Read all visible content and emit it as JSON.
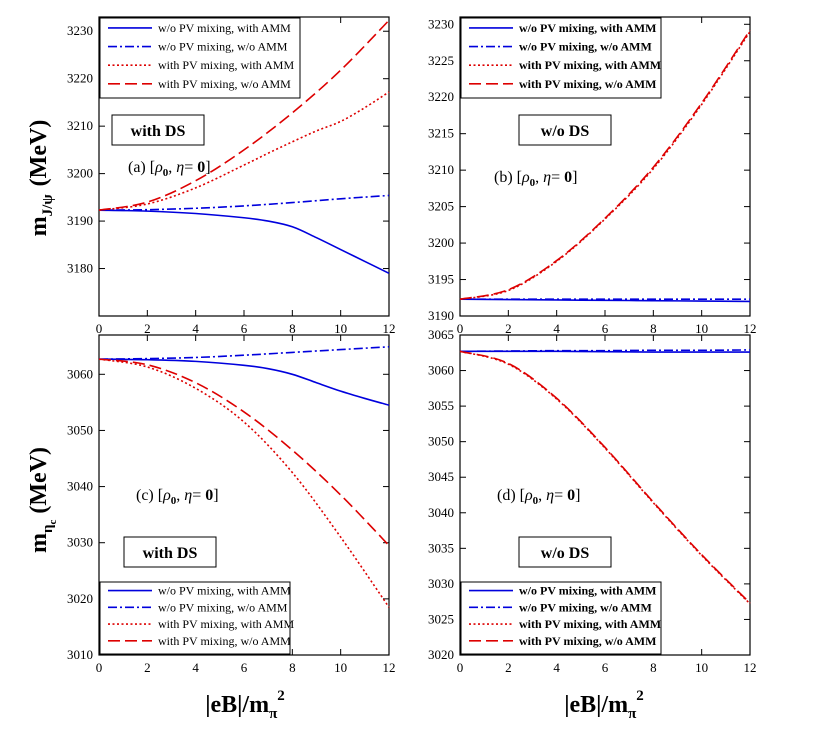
{
  "chart_data": [
    {
      "type": "line",
      "panel": "a",
      "annotation_text": "(a) [ρ0, η= 0]",
      "box_label": "with DS",
      "xlim": [
        0,
        12
      ],
      "ylim": [
        3170,
        3233
      ],
      "xticks": [
        0,
        2,
        4,
        6,
        8,
        10,
        12
      ],
      "yticks": [
        3180,
        3190,
        3200,
        3210,
        3220,
        3230
      ],
      "ylabel": "mJ/ψ  (MeV)",
      "legend_position": "top-left",
      "legend_bold": false,
      "series": [
        {
          "name": "w/o PV mixing, with AMM",
          "color": "#0000dd",
          "dash": "solid",
          "x": [
            0,
            2,
            4,
            6,
            7,
            8,
            9,
            10,
            11,
            12
          ],
          "y": [
            3192.3,
            3192.1,
            3191.6,
            3190.7,
            3190.0,
            3188.8,
            3186.5,
            3184.0,
            3181.5,
            3179.0
          ]
        },
        {
          "name": "w/o PV mixing, w/o AMM",
          "color": "#0000dd",
          "dash": "dashdot",
          "x": [
            0,
            2,
            4,
            6,
            8,
            10,
            12
          ],
          "y": [
            3192.3,
            3192.4,
            3192.7,
            3193.2,
            3193.9,
            3194.7,
            3195.4
          ]
        },
        {
          "name": "with PV mixing, with AMM",
          "color": "#dd0000",
          "dash": "dotted",
          "x": [
            0,
            2,
            4,
            6,
            7,
            8,
            9,
            10,
            11,
            12
          ],
          "y": [
            3192.3,
            3193.6,
            3197.0,
            3201.8,
            3204.3,
            3206.7,
            3209.0,
            3211.0,
            3213.9,
            3217.2
          ]
        },
        {
          "name": "with PV mixing, w/o AMM",
          "color": "#dd0000",
          "dash": "dashed",
          "x": [
            0,
            2,
            4,
            6,
            8,
            10,
            12
          ],
          "y": [
            3192.3,
            3194.0,
            3198.5,
            3205.0,
            3212.8,
            3221.8,
            3232.3
          ]
        }
      ]
    },
    {
      "type": "line",
      "panel": "b",
      "annotation_text": "(b) [ρ0, η= 0]",
      "box_label": "w/o DS",
      "xlim": [
        0,
        12
      ],
      "ylim": [
        3190,
        3231
      ],
      "xticks": [
        0,
        2,
        4,
        6,
        8,
        10,
        12
      ],
      "yticks": [
        3190,
        3195,
        3200,
        3205,
        3210,
        3215,
        3220,
        3225,
        3230
      ],
      "legend_position": "top-left",
      "legend_bold": true,
      "series": [
        {
          "name": "w/o PV mixing, with AMM",
          "color": "#0000dd",
          "dash": "solid",
          "x": [
            0,
            2,
            4,
            6,
            8,
            10,
            12
          ],
          "y": [
            3192.3,
            3192.25,
            3192.2,
            3192.15,
            3192.1,
            3192.05,
            3192.0
          ]
        },
        {
          "name": "w/o PV mixing, w/o AMM",
          "color": "#0000dd",
          "dash": "dashdot",
          "x": [
            0,
            2,
            4,
            6,
            8,
            10,
            12
          ],
          "y": [
            3192.3,
            3192.3,
            3192.3,
            3192.3,
            3192.3,
            3192.3,
            3192.3
          ]
        },
        {
          "name": "with PV mixing, with AMM",
          "color": "#dd0000",
          "dash": "dotted",
          "x": [
            0,
            2,
            4,
            6,
            8,
            10,
            12
          ],
          "y": [
            3192.3,
            3193.5,
            3197.5,
            3203.3,
            3210.2,
            3219.0,
            3229.0
          ]
        },
        {
          "name": "with PV mixing, w/o AMM",
          "color": "#dd0000",
          "dash": "dashed",
          "x": [
            0,
            2,
            4,
            6,
            8,
            10,
            12
          ],
          "y": [
            3192.3,
            3193.6,
            3197.6,
            3203.4,
            3210.4,
            3219.2,
            3229.2
          ]
        }
      ]
    },
    {
      "type": "line",
      "panel": "c",
      "annotation_text": "(c) [ρ0, η= 0]",
      "box_label": "with DS",
      "xlim": [
        0,
        12
      ],
      "ylim": [
        3010,
        3067
      ],
      "xticks": [
        0,
        2,
        4,
        6,
        8,
        10,
        12
      ],
      "yticks": [
        3010,
        3020,
        3030,
        3040,
        3050,
        3060
      ],
      "xlabel": "|eB|/mπ2",
      "ylabel": "mηc (MeV)",
      "legend_position": "bottom-left",
      "legend_bold": false,
      "series": [
        {
          "name": "w/o PV mixing, with AMM",
          "color": "#0000dd",
          "dash": "solid",
          "x": [
            0,
            2,
            4,
            6,
            7,
            8,
            9,
            10,
            11,
            12
          ],
          "y": [
            3062.7,
            3062.6,
            3062.3,
            3061.6,
            3061.0,
            3060.0,
            3058.5,
            3057.0,
            3055.7,
            3054.5
          ]
        },
        {
          "name": "w/o PV mixing, w/o AMM",
          "color": "#0000dd",
          "dash": "dashdot",
          "x": [
            0,
            2,
            4,
            6,
            8,
            10,
            12
          ],
          "y": [
            3062.7,
            3062.8,
            3063.0,
            3063.4,
            3063.9,
            3064.4,
            3064.9
          ]
        },
        {
          "name": "with PV mixing, with AMM",
          "color": "#dd0000",
          "dash": "dotted",
          "x": [
            0,
            2,
            4,
            6,
            8,
            10,
            12
          ],
          "y": [
            3062.7,
            3061.3,
            3057.5,
            3051.5,
            3042.5,
            3031.0,
            3018.5
          ]
        },
        {
          "name": "with PV mixing, w/o AMM",
          "color": "#dd0000",
          "dash": "dashed",
          "x": [
            0,
            2,
            4,
            6,
            8,
            10,
            12
          ],
          "y": [
            3062.7,
            3061.7,
            3058.5,
            3053.3,
            3046.5,
            3038.5,
            3029.5
          ]
        }
      ]
    },
    {
      "type": "line",
      "panel": "d",
      "annotation_text": "(d) [ρ0, η= 0]",
      "box_label": "w/o DS",
      "xlim": [
        0,
        12
      ],
      "ylim": [
        3020,
        3065
      ],
      "xticks": [
        0,
        2,
        4,
        6,
        8,
        10,
        12
      ],
      "yticks": [
        3020,
        3025,
        3030,
        3035,
        3040,
        3045,
        3050,
        3055,
        3060,
        3065
      ],
      "xlabel": "|eB|/mπ2",
      "legend_position": "bottom-left",
      "legend_bold": true,
      "series": [
        {
          "name": "w/o PV mixing, with AMM",
          "color": "#0000dd",
          "dash": "solid",
          "x": [
            0,
            2,
            4,
            6,
            8,
            10,
            12
          ],
          "y": [
            3062.7,
            3062.7,
            3062.7,
            3062.65,
            3062.6,
            3062.6,
            3062.6
          ]
        },
        {
          "name": "w/o PV mixing, w/o AMM",
          "color": "#0000dd",
          "dash": "dashdot",
          "x": [
            0,
            2,
            4,
            6,
            8,
            10,
            12
          ],
          "y": [
            3062.7,
            3062.75,
            3062.8,
            3062.8,
            3062.85,
            3062.85,
            3062.9
          ]
        },
        {
          "name": "with PV mixing, with AMM",
          "color": "#dd0000",
          "dash": "dotted",
          "x": [
            0,
            2,
            4,
            6,
            8,
            10,
            12
          ],
          "y": [
            3062.7,
            3060.9,
            3056.0,
            3049.1,
            3041.4,
            3034.0,
            3027.2
          ]
        },
        {
          "name": "with PV mixing, w/o AMM",
          "color": "#dd0000",
          "dash": "dashed",
          "x": [
            0,
            2,
            4,
            6,
            8,
            10,
            12
          ],
          "y": [
            3062.7,
            3061.0,
            3056.1,
            3049.2,
            3041.5,
            3034.1,
            3027.3
          ]
        }
      ]
    }
  ]
}
